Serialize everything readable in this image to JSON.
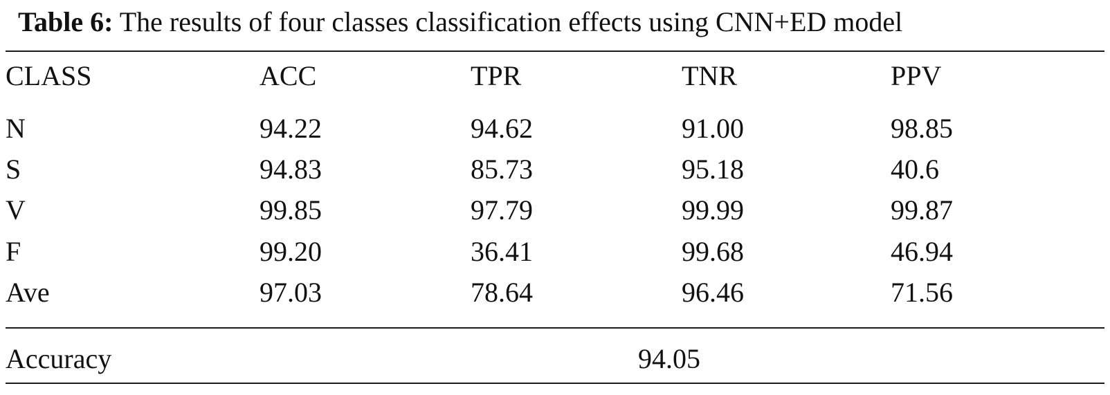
{
  "caption": {
    "label": "Table 6:",
    "text": "The results of four classes classification effects using CNN+ED model"
  },
  "table": {
    "headers": [
      "CLASS",
      "ACC",
      "TPR",
      "TNR",
      "PPV"
    ],
    "rows": [
      [
        "N",
        "94.22",
        "94.62",
        "91.00",
        "98.85"
      ],
      [
        "S",
        "94.83",
        "85.73",
        "95.18",
        "40.6"
      ],
      [
        "V",
        "99.85",
        "97.79",
        "99.99",
        "99.87"
      ],
      [
        "F",
        "99.20",
        "36.41",
        "99.68",
        "46.94"
      ],
      [
        "Ave",
        "97.03",
        "78.64",
        "96.46",
        "71.56"
      ]
    ],
    "footer": {
      "label": "Accuracy",
      "value": "94.05"
    }
  }
}
